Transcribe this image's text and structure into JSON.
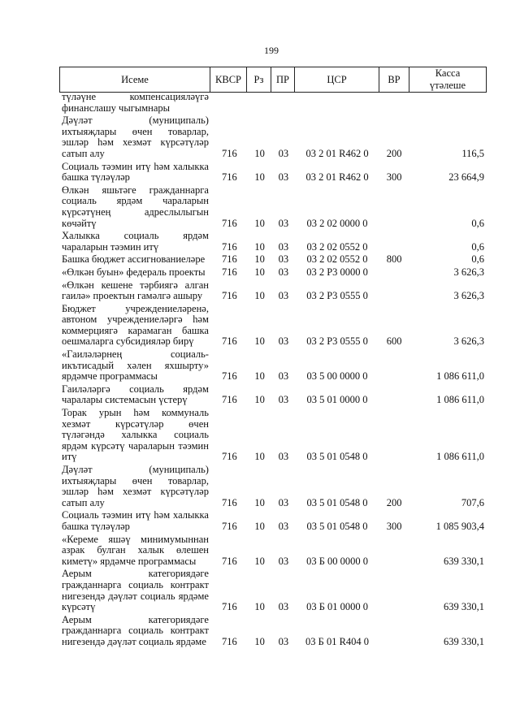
{
  "page_number": "199",
  "header": {
    "name": "Исеме",
    "kvsr": "КВСР",
    "rz": "Рз",
    "pr": "ПР",
    "csr": "ЦСР",
    "vr": "ВР",
    "kassa_line1": "Касса",
    "kassa_line2": "үтәлеше"
  },
  "rows": [
    {
      "name": [
        "түләүне компенсацияләүгә",
        "финанслашу чыгымнары"
      ],
      "kvsr": "",
      "rz": "",
      "pr": "",
      "csr": "",
      "vr": "",
      "amount": ""
    },
    {
      "name": [
        "Дәүләт (муниципаль)",
        "ихтыяҗлары өчен товарлар,",
        "эшләр һәм хезмәт күрсәтүләр",
        "сатып алу"
      ],
      "kvsr": "716",
      "rz": "10",
      "pr": "03",
      "csr": "03 2 01 R462 0",
      "vr": "200",
      "amount": "116,5"
    },
    {
      "name": [
        "Социаль тәэмин итү һәм халыкка",
        "башка түләүләр"
      ],
      "kvsr": "716",
      "rz": "10",
      "pr": "03",
      "csr": "03 2 01 R462 0",
      "vr": "300",
      "amount": "23 664,9"
    },
    {
      "name": [
        "Өлкән яшьтәге гражданнарга",
        "социаль ярдәм чараларын",
        "күрсәтүнең адреслылыгын",
        "көчәйтү"
      ],
      "kvsr": "716",
      "rz": "10",
      "pr": "03",
      "csr": "03 2 02 0000 0",
      "vr": "",
      "amount": "0,6"
    },
    {
      "name": [
        "Халыкка социаль ярдәм",
        "чараларын тәэмин итү"
      ],
      "kvsr": "716",
      "rz": "10",
      "pr": "03",
      "csr": "03 2 02 0552 0",
      "vr": "",
      "amount": "0,6"
    },
    {
      "name": [
        "Башка бюджет ассигнованиеләре"
      ],
      "kvsr": "716",
      "rz": "10",
      "pr": "03",
      "csr": "03 2 02 0552 0",
      "vr": "800",
      "amount": "0,6"
    },
    {
      "name": [
        "«Өлкән буын» федераль проекты"
      ],
      "kvsr": "716",
      "rz": "10",
      "pr": "03",
      "csr": "03 2 P3 0000 0",
      "vr": "",
      "amount": "3 626,3"
    },
    {
      "name": [
        "«Өлкән кешене тәрбиягә алган",
        "гаилә» проектын гамәлгә ашыру"
      ],
      "kvsr": "716",
      "rz": "10",
      "pr": "03",
      "csr": "03 2 P3 0555 0",
      "vr": "",
      "amount": "3 626,3"
    },
    {
      "name": [
        "Бюджет учреждениеләренә,",
        "автоном учреждениеләргә һәм",
        "коммерциягә карамаган башка",
        "оешмаларга субсидияләр бирү"
      ],
      "kvsr": "716",
      "rz": "10",
      "pr": "03",
      "csr": "03 2 P3 0555 0",
      "vr": "600",
      "amount": "3 626,3"
    },
    {
      "name": [
        "«Гаиләләрнең социаль-",
        "икътисадый хәлен яхшырту»",
        "ярдәмче программасы"
      ],
      "kvsr": "716",
      "rz": "10",
      "pr": "03",
      "csr": "03 5 00 0000 0",
      "vr": "",
      "amount": "1 086 611,0"
    },
    {
      "name": [
        "Гаиләләргә социаль ярдәм",
        "чаралары системасын үстерү"
      ],
      "kvsr": "716",
      "rz": "10",
      "pr": "03",
      "csr": "03 5 01 0000 0",
      "vr": "",
      "amount": "1 086 611,0"
    },
    {
      "name": [
        "Торак урын һәм коммуналь",
        "хезмәт күрсәтүләр өчен",
        "түләгәндә халыкка социаль",
        "ярдәм күрсәтү чараларын тәэмин",
        "итү"
      ],
      "kvsr": "716",
      "rz": "10",
      "pr": "03",
      "csr": "03 5 01 0548 0",
      "vr": "",
      "amount": "1 086 611,0"
    },
    {
      "name": [
        "Дәүләт (муниципаль)",
        "ихтыяҗлары өчен товарлар,",
        "эшләр һәм хезмәт күрсәтүләр",
        "сатып алу"
      ],
      "kvsr": "716",
      "rz": "10",
      "pr": "03",
      "csr": "03 5 01 0548 0",
      "vr": "200",
      "amount": "707,6"
    },
    {
      "name": [
        "Социаль тәэмин итү һәм халыкка",
        "башка түләүләр"
      ],
      "kvsr": "716",
      "rz": "10",
      "pr": "03",
      "csr": "03 5 01 0548 0",
      "vr": "300",
      "amount": "1 085 903,4"
    },
    {
      "name": [
        "«Кереме яшәү минимумыннан",
        "азрак булган халык өлешен",
        "киметү» ярдәмче программасы"
      ],
      "kvsr": "716",
      "rz": "10",
      "pr": "03",
      "csr": "03 Б 00 0000 0",
      "vr": "",
      "amount": "639 330,1"
    },
    {
      "name": [
        "Аерым категориядәге",
        "гражданнарга социаль контракт",
        "нигезендә дәүләт социаль ярдәме",
        "күрсәтү"
      ],
      "kvsr": "716",
      "rz": "10",
      "pr": "03",
      "csr": "03 Б 01 0000 0",
      "vr": "",
      "amount": "639 330,1"
    },
    {
      "name": [
        "Аерым категориядәге",
        "гражданнарга социаль контракт",
        "нигезендә дәүләт социаль ярдәме"
      ],
      "kvsr": "716",
      "rz": "10",
      "pr": "03",
      "csr": "03 Б 01 R404 0",
      "vr": "",
      "amount": "639 330,1"
    }
  ]
}
